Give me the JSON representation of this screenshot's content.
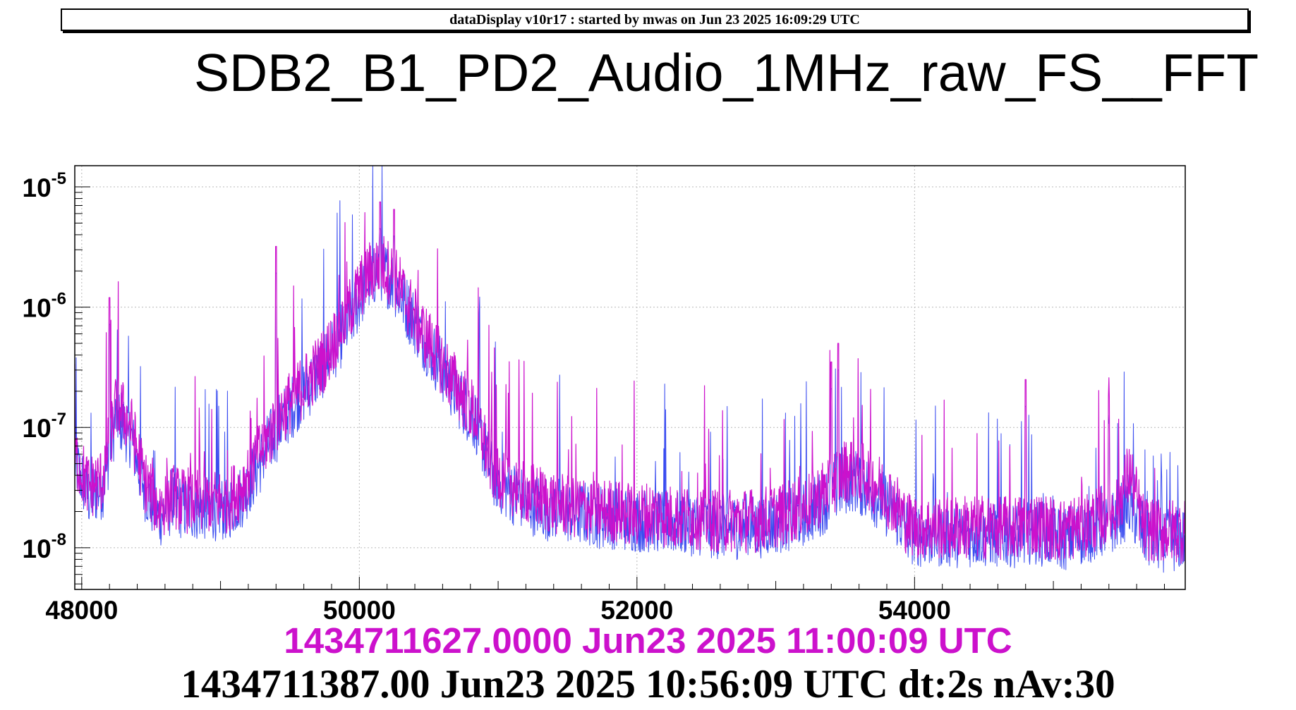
{
  "header": {
    "text": "dataDisplay v10r17 : started by mwas on Jun 23 2025 16:09:29 UTC"
  },
  "title": "SDB2_B1_PD2_Audio_1MHz_raw_FS__FFT",
  "captions": {
    "current": "1434711627.0000 Jun23 2025 11:00:09 UTC",
    "reference": "1434711387.00 Jun23 2025 10:56:09 UTC dt:2s nAv:30"
  },
  "colors": {
    "current_trace": "#cc11cc",
    "reference_trace": "#3a4cf0",
    "grid": "#b8b8b8",
    "frame": "#000000"
  },
  "chart_data": {
    "type": "line",
    "title": "SDB2_B1_PD2_Audio_1MHz_raw_FS__FFT",
    "xlabel": "",
    "ylabel": "",
    "xlim": [
      47950,
      55950
    ],
    "ylim": [
      4.5e-09,
      1.5e-05
    ],
    "y_scale": "log",
    "grid": true,
    "x_ticks": [
      {
        "value": 48000,
        "label": "48000"
      },
      {
        "value": 50000,
        "label": "50000"
      },
      {
        "value": 52000,
        "label": "52000"
      },
      {
        "value": 54000,
        "label": "54000"
      }
    ],
    "y_ticks": [
      {
        "value": 1e-08,
        "mantissa": "10",
        "exponent": "-8"
      },
      {
        "value": 1e-07,
        "mantissa": "10",
        "exponent": "-7"
      },
      {
        "value": 1e-06,
        "mantissa": "10",
        "exponent": "-6"
      },
      {
        "value": 1e-05,
        "mantissa": "10",
        "exponent": "-5"
      }
    ],
    "series": [
      {
        "role": "reference",
        "color": "#3a4cf0",
        "x": [
          47950,
          48050,
          48150,
          48250,
          48350,
          48450,
          48550,
          48650,
          48750,
          48850,
          48950,
          49050,
          49150,
          49250,
          49350,
          49450,
          49550,
          49650,
          49750,
          49850,
          49950,
          50050,
          50150,
          50250,
          50350,
          50450,
          50550,
          50650,
          50750,
          50850,
          50950,
          51050,
          51150,
          51250,
          51350,
          51450,
          51550,
          51650,
          51750,
          51850,
          51950,
          52050,
          52150,
          52250,
          52350,
          52450,
          52550,
          52650,
          52750,
          52850,
          52950,
          53050,
          53150,
          53250,
          53350,
          53450,
          53550,
          53650,
          53750,
          53850,
          53950,
          54050,
          54150,
          54250,
          54350,
          54450,
          54550,
          54650,
          54750,
          54850,
          54950,
          55050,
          55150,
          55250,
          55350,
          55450,
          55550,
          55650,
          55750,
          55850,
          55950
        ],
        "y": [
          5e-08,
          2.5e-08,
          3e-08,
          1.2e-07,
          8e-08,
          3e-08,
          1.7e-08,
          2.2e-08,
          2e-08,
          2e-08,
          2e-08,
          2e-08,
          2.5e-08,
          4e-08,
          7e-08,
          1.1e-07,
          1.6e-07,
          2.2e-07,
          3.2e-07,
          5e-07,
          8e-07,
          1.5e-06,
          2e-06,
          1.5e-06,
          9e-07,
          5.5e-07,
          3.5e-07,
          2.2e-07,
          1.5e-07,
          1e-07,
          4e-08,
          3e-08,
          2.5e-08,
          2.2e-08,
          2e-08,
          2e-08,
          1.8e-08,
          1.8e-08,
          1.7e-08,
          1.7e-08,
          1.6e-08,
          1.6e-08,
          1.6e-08,
          1.5e-08,
          1.5e-08,
          1.5e-08,
          1.4e-08,
          1.4e-08,
          1.4e-08,
          1.4e-08,
          1.5e-08,
          1.6e-08,
          1.7e-08,
          1.9e-08,
          2.3e-08,
          3e-08,
          3.5e-08,
          3e-08,
          2.4e-08,
          1.9e-08,
          1.3e-08,
          1.2e-08,
          1.2e-08,
          1.2e-08,
          1.2e-08,
          1.2e-08,
          1.2e-08,
          1.2e-08,
          1.2e-08,
          1.3e-08,
          1.2e-08,
          1.1e-08,
          1.2e-08,
          1.3e-08,
          1.4e-08,
          1.6e-08,
          2.2e-08,
          1.2e-08,
          1.1e-08,
          1.1e-08,
          1.1e-08
        ]
      },
      {
        "role": "current",
        "color": "#cc11cc",
        "x": [
          47950,
          48050,
          48150,
          48250,
          48350,
          48450,
          48550,
          48650,
          48750,
          48850,
          48950,
          49050,
          49150,
          49250,
          49350,
          49450,
          49550,
          49650,
          49750,
          49850,
          49950,
          50050,
          50150,
          50250,
          50350,
          50450,
          50550,
          50650,
          50750,
          50850,
          50950,
          51050,
          51150,
          51250,
          51350,
          51450,
          51550,
          51650,
          51750,
          51850,
          51950,
          52050,
          52150,
          52250,
          52350,
          52450,
          52550,
          52650,
          52750,
          52850,
          52950,
          53050,
          53150,
          53250,
          53350,
          53450,
          53550,
          53650,
          53750,
          53850,
          53950,
          54050,
          54150,
          54250,
          54350,
          54450,
          54550,
          54650,
          54750,
          54850,
          54950,
          55050,
          55150,
          55250,
          55350,
          55450,
          55550,
          55650,
          55750,
          55850,
          55950
        ],
        "y": [
          5.5e-08,
          3e-08,
          3.5e-08,
          1.5e-07,
          1e-07,
          3.5e-08,
          2e-08,
          2.5e-08,
          2.3e-08,
          2.3e-08,
          2.3e-08,
          2.3e-08,
          3e-08,
          5e-08,
          8e-08,
          1.3e-07,
          1.8e-07,
          2.5e-07,
          3.5e-07,
          6e-07,
          1e-06,
          1.7e-06,
          2.2e-06,
          1.7e-06,
          1e-06,
          6e-07,
          4e-07,
          2.5e-07,
          1.7e-07,
          1.1e-07,
          4.5e-08,
          3.5e-08,
          3e-08,
          2.6e-08,
          2.3e-08,
          2.2e-08,
          2.1e-08,
          2e-08,
          1.9e-08,
          1.9e-08,
          1.8e-08,
          1.8e-08,
          1.8e-08,
          1.7e-08,
          1.7e-08,
          1.7e-08,
          1.6e-08,
          1.6e-08,
          1.6e-08,
          1.6e-08,
          1.7e-08,
          1.8e-08,
          2e-08,
          2.2e-08,
          2.8e-08,
          3.7e-08,
          4.5e-08,
          3.8e-08,
          3e-08,
          2.3e-08,
          1.5e-08,
          1.4e-08,
          1.4e-08,
          1.4e-08,
          1.4e-08,
          1.4e-08,
          1.4e-08,
          1.4e-08,
          1.4e-08,
          1.5e-08,
          1.4e-08,
          1.3e-08,
          1.4e-08,
          1.5e-08,
          1.7e-08,
          2e-08,
          4e-08,
          1.4e-08,
          1.3e-08,
          1.3e-08,
          1.3e-08
        ]
      }
    ],
    "peaks": [
      {
        "x": 48200,
        "y": 1.2e-06
      },
      {
        "x": 49400,
        "y": 3.2e-06
      },
      {
        "x": 50150,
        "y": 7.5e-06
      },
      {
        "x": 50250,
        "y": 6.5e-06
      },
      {
        "x": 53450,
        "y": 5e-07
      },
      {
        "x": 53400,
        "y": 3.5e-07
      },
      {
        "x": 54800,
        "y": 2.5e-07
      },
      {
        "x": 55400,
        "y": 1.8e-07
      }
    ]
  }
}
